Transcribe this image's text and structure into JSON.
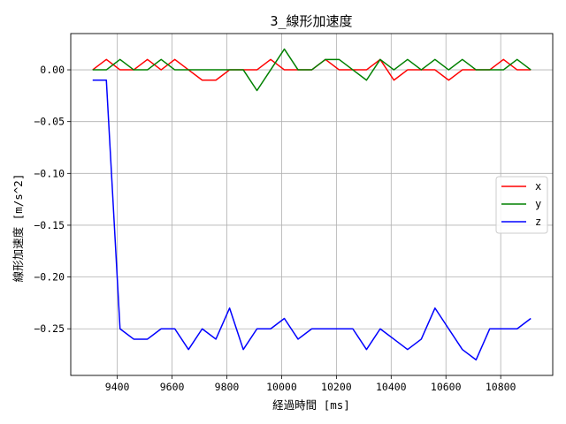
{
  "chart_data": {
    "type": "line",
    "title": "3_線形加速度",
    "xlabel": "経過時間 [ms]",
    "ylabel": "線形加速度 [m/s^2]",
    "xlim": [
      9230,
      10990
    ],
    "ylim": [
      -0.295,
      0.035
    ],
    "xticks": [
      9400,
      9600,
      9800,
      10000,
      10200,
      10400,
      10600,
      10800
    ],
    "xtick_labels": [
      "9400",
      "9600",
      "9800",
      "10000",
      "10200",
      "10400",
      "10600",
      "10800"
    ],
    "yticks": [
      0.0,
      -0.05,
      -0.1,
      -0.15,
      -0.2,
      -0.25
    ],
    "ytick_labels": [
      "0.00",
      "−0.05",
      "−0.10",
      "−0.15",
      "−0.20",
      "−0.25"
    ],
    "grid": true,
    "legend_position": "center-right",
    "x": [
      9310,
      9360,
      9410,
      9460,
      9510,
      9560,
      9610,
      9660,
      9710,
      9760,
      9810,
      9860,
      9910,
      9960,
      10010,
      10060,
      10110,
      10160,
      10210,
      10260,
      10310,
      10360,
      10410,
      10460,
      10510,
      10560,
      10610,
      10660,
      10710,
      10760,
      10810,
      10860,
      10910
    ],
    "series": [
      {
        "name": "x",
        "color": "#ff0000",
        "values": [
          0.0,
          0.01,
          0.0,
          0.0,
          0.01,
          0.0,
          0.01,
          0.0,
          -0.01,
          -0.01,
          0.0,
          0.0,
          0.0,
          0.01,
          0.0,
          0.0,
          0.0,
          0.01,
          0.0,
          0.0,
          0.0,
          0.01,
          -0.01,
          0.0,
          0.0,
          0.0,
          -0.01,
          0.0,
          0.0,
          0.0,
          0.01,
          0.0,
          0.0
        ]
      },
      {
        "name": "y",
        "color": "#008000",
        "values": [
          0.0,
          0.0,
          0.01,
          0.0,
          0.0,
          0.01,
          0.0,
          0.0,
          0.0,
          0.0,
          0.0,
          0.0,
          -0.02,
          0.0,
          0.02,
          0.0,
          0.0,
          0.01,
          0.01,
          0.0,
          -0.01,
          0.01,
          0.0,
          0.01,
          0.0,
          0.01,
          0.0,
          0.01,
          0.0,
          0.0,
          0.0,
          0.01,
          0.0
        ]
      },
      {
        "name": "z",
        "color": "#0000ff",
        "values": [
          -0.01,
          -0.01,
          -0.25,
          -0.26,
          -0.26,
          -0.25,
          -0.25,
          -0.27,
          -0.25,
          -0.26,
          -0.23,
          -0.27,
          -0.25,
          -0.25,
          -0.24,
          -0.26,
          -0.25,
          -0.25,
          -0.25,
          -0.25,
          -0.27,
          -0.25,
          -0.26,
          -0.27,
          -0.26,
          -0.23,
          -0.25,
          -0.27,
          -0.28,
          -0.25,
          -0.25,
          -0.25,
          -0.24
        ]
      }
    ]
  }
}
